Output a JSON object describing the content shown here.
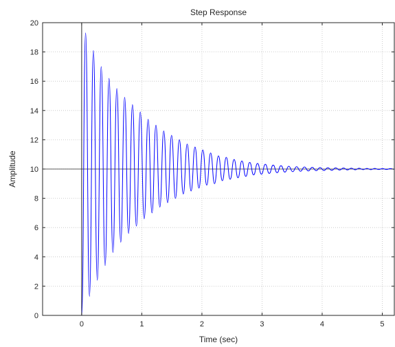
{
  "chart_data": {
    "type": "line",
    "title": "Step Response",
    "xlabel": "Time (sec)",
    "ylabel": "Amplitude",
    "xlim": [
      -0.65,
      5.2
    ],
    "ylim": [
      0,
      20
    ],
    "x_ticks": [
      0,
      1,
      2,
      3,
      4,
      5
    ],
    "x_tick_labels": [
      "0",
      "1",
      "2",
      "3",
      "4",
      "5"
    ],
    "y_ticks": [
      0,
      2,
      4,
      6,
      8,
      10,
      12,
      14,
      16,
      18,
      20
    ],
    "y_tick_labels": [
      "0",
      "2",
      "4",
      "6",
      "8",
      "10",
      "12",
      "14",
      "16",
      "18",
      "20"
    ],
    "grid": true,
    "reference_lines": {
      "x": 0,
      "y": 10
    },
    "series": [
      {
        "color": "#0000ff",
        "x": [
          0.0,
          0.065,
          0.13,
          0.195,
          0.26,
          0.325,
          0.39,
          0.455,
          0.52,
          0.585,
          0.65,
          0.715,
          0.78,
          0.845,
          0.91,
          0.975,
          1.04,
          1.105,
          1.17,
          1.235,
          1.3,
          1.365,
          1.43,
          1.495,
          1.56,
          1.625,
          1.69,
          1.755,
          1.82,
          1.885,
          1.95,
          2.015,
          2.08,
          2.145,
          2.21,
          2.275,
          2.34,
          2.405,
          2.47,
          2.535,
          2.6,
          2.665,
          2.73,
          2.795,
          2.86,
          2.925,
          2.99,
          3.055,
          3.12,
          3.185,
          3.25,
          3.315,
          3.38,
          3.445,
          3.51,
          3.575,
          3.64,
          3.705,
          3.77,
          3.835,
          3.9,
          3.965,
          4.03,
          4.095,
          4.16,
          4.225,
          4.29,
          4.355,
          4.42,
          4.485,
          4.55,
          4.615,
          4.68,
          4.745,
          4.81,
          4.875,
          4.94,
          5.005,
          5.07,
          5.135,
          5.2
        ],
        "y": [
          0.0,
          19.3,
          1.3,
          18.1,
          2.4,
          17.0,
          3.4,
          16.2,
          4.3,
          15.5,
          5.0,
          14.9,
          5.6,
          14.4,
          6.1,
          13.9,
          6.6,
          13.4,
          7.0,
          13.0,
          7.4,
          12.6,
          7.7,
          12.3,
          8.0,
          12.0,
          8.3,
          11.7,
          8.5,
          11.5,
          8.7,
          11.3,
          8.9,
          11.1,
          9.0,
          10.9,
          9.2,
          10.8,
          9.3,
          10.65,
          9.4,
          10.55,
          9.5,
          10.45,
          9.6,
          10.38,
          9.65,
          10.32,
          9.7,
          10.27,
          9.75,
          10.23,
          9.79,
          10.19,
          9.82,
          10.16,
          9.85,
          10.14,
          9.87,
          10.12,
          9.89,
          10.1,
          9.9,
          10.09,
          9.91,
          10.08,
          9.93,
          10.07,
          9.94,
          10.06,
          9.95,
          10.05,
          9.96,
          10.04,
          9.96,
          10.04,
          9.97,
          10.03,
          9.97,
          10.03,
          9.98
        ]
      }
    ]
  }
}
